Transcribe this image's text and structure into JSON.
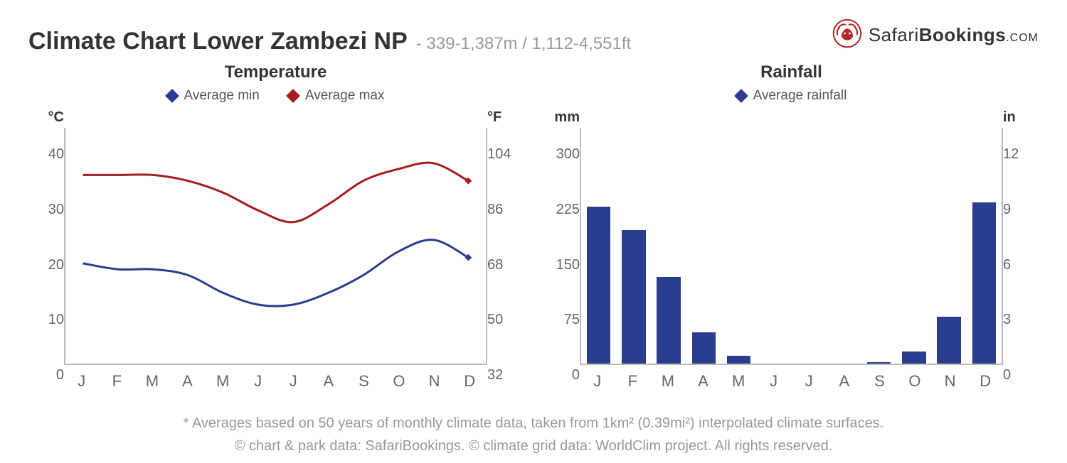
{
  "header": {
    "title": "Climate Chart Lower Zambezi NP",
    "subtitle": "- 339-1,387m / 1,112-4,551ft",
    "logo": {
      "brand1": "Safari",
      "brand2": "Bookings",
      "tld": ".COM",
      "color": "#b02a2a"
    }
  },
  "months": [
    "J",
    "F",
    "M",
    "A",
    "M",
    "J",
    "J",
    "A",
    "S",
    "O",
    "N",
    "D"
  ],
  "temperature": {
    "type": "line",
    "title": "Temperature",
    "title_fontsize": 24,
    "legend": [
      {
        "label": "Average min",
        "color": "#2a3d8f"
      },
      {
        "label": "Average max",
        "color": "#a61c1c"
      }
    ],
    "left_axis": {
      "unit": "°C",
      "min": 0,
      "max": 40,
      "ticks": [
        40,
        30,
        20,
        10,
        0
      ]
    },
    "right_axis": {
      "unit": "°F",
      "ticks": [
        104,
        86,
        68,
        50,
        32
      ]
    },
    "series_min_color": "#2a3d8f",
    "series_max_color": "#a61c1c",
    "avg_min": [
      17,
      16,
      16,
      15,
      12,
      10,
      10,
      12,
      15,
      19,
      21,
      18
    ],
    "avg_max": [
      32,
      32,
      32,
      31,
      29,
      26,
      24,
      27,
      31,
      33,
      34,
      31
    ],
    "line_width": 3,
    "marker_size": 7,
    "background_color": "#ffffff",
    "border_color": "#bbbbbb"
  },
  "rainfall": {
    "type": "bar",
    "title": "Rainfall",
    "title_fontsize": 24,
    "legend": [
      {
        "label": "Average rainfall",
        "color": "#2a3d8f"
      }
    ],
    "left_axis": {
      "unit": "mm",
      "min": 0,
      "max": 300,
      "ticks": [
        300,
        225,
        150,
        75,
        0
      ]
    },
    "right_axis": {
      "unit": "in",
      "ticks": [
        12,
        9,
        6,
        3,
        0
      ]
    },
    "values": [
      200,
      170,
      110,
      40,
      10,
      0,
      0,
      0,
      2,
      15,
      60,
      205
    ],
    "bar_color": "#2a3d8f",
    "bar_width": 0.68,
    "background_color": "#ffffff",
    "border_color": "#bbbbbb"
  },
  "footer": {
    "line1": "* Averages based on 50 years of monthly climate data, taken from 1km² (0.39mi²) interpolated climate surfaces.",
    "line2": "© chart & park data: SafariBookings. © climate grid data: WorldClim project. All rights reserved."
  }
}
